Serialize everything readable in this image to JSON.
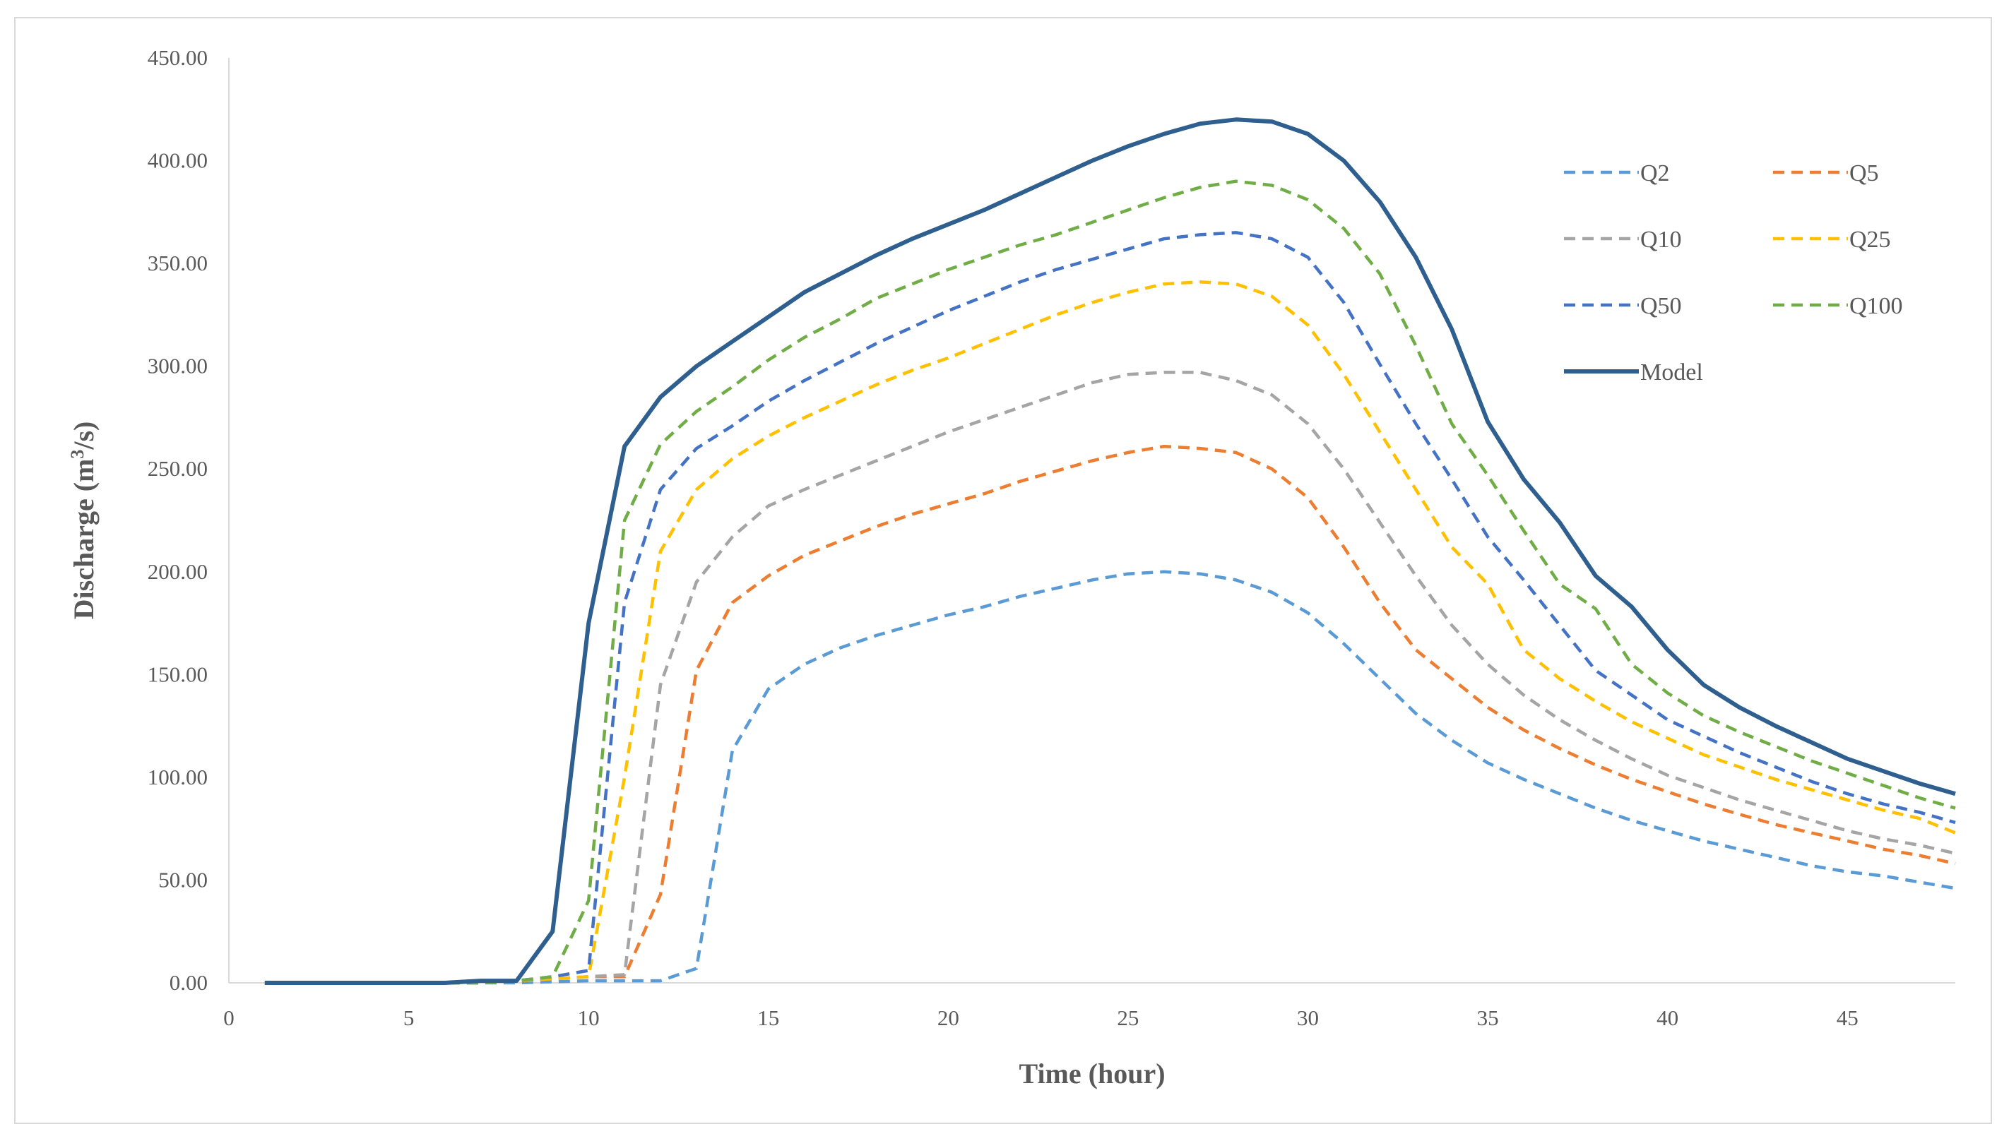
{
  "chart_data": {
    "type": "line",
    "title": "",
    "xlabel": "Time (hour)",
    "ylabel_prefix": "Discharge (m",
    "ylabel_sup": "3",
    "ylabel_suffix": "/s)",
    "xlim": [
      0,
      48
    ],
    "ylim": [
      0,
      450
    ],
    "xticks": [
      0,
      5,
      10,
      15,
      20,
      25,
      30,
      35,
      40,
      45
    ],
    "yticks": [
      0,
      50,
      100,
      150,
      200,
      250,
      300,
      350,
      400,
      450
    ],
    "ytick_labels": [
      "0.00",
      "50.00",
      "100.00",
      "150.00",
      "200.00",
      "250.00",
      "300.00",
      "350.00",
      "400.00",
      "450.00"
    ],
    "grid": false,
    "legend_position": "top-right",
    "x": [
      1,
      2,
      3,
      4,
      5,
      6,
      7,
      8,
      9,
      10,
      11,
      12,
      13,
      14,
      15,
      16,
      17,
      18,
      19,
      20,
      21,
      22,
      23,
      24,
      25,
      26,
      27,
      28,
      29,
      30,
      31,
      32,
      33,
      34,
      35,
      36,
      37,
      38,
      39,
      40,
      41,
      42,
      43,
      44,
      45,
      46,
      47,
      48
    ],
    "series": [
      {
        "name": "Q2",
        "color": "#5b9bd5",
        "dashed": true,
        "values": [
          0,
          0,
          0,
          0,
          0,
          0,
          0,
          0,
          0.5,
          1,
          1,
          1,
          7,
          113,
          143,
          155,
          163,
          169,
          174,
          179,
          183,
          188,
          192,
          196,
          199,
          200,
          199,
          196,
          190,
          180,
          165,
          148,
          131,
          118,
          107,
          99,
          92,
          85,
          79,
          74,
          69,
          65,
          61,
          57,
          54,
          52,
          49,
          46
        ]
      },
      {
        "name": "Q5",
        "color": "#ed7d31",
        "dashed": true,
        "values": [
          0,
          0,
          0,
          0,
          0,
          0,
          0,
          1,
          2,
          3,
          3,
          43,
          152,
          185,
          198,
          208,
          215,
          222,
          228,
          233,
          238,
          244,
          249,
          254,
          258,
          261,
          260,
          258,
          250,
          236,
          212,
          185,
          162,
          148,
          134,
          123,
          114,
          106,
          99,
          93,
          87,
          82,
          77,
          73,
          69,
          65,
          62,
          58
        ]
      },
      {
        "name": "Q10",
        "color": "#a5a5a5",
        "dashed": true,
        "values": [
          0,
          0,
          0,
          0,
          0,
          0,
          0,
          1,
          2,
          3,
          4,
          145,
          195,
          217,
          232,
          240,
          247,
          254,
          261,
          268,
          274,
          280,
          286,
          292,
          296,
          297,
          297,
          293,
          286,
          272,
          250,
          224,
          198,
          174,
          155,
          140,
          128,
          118,
          109,
          101,
          95,
          89,
          84,
          79,
          74,
          70,
          67,
          63
        ]
      },
      {
        "name": "Q25",
        "color": "#ffc000",
        "dashed": true,
        "values": [
          0,
          0,
          0,
          0,
          0,
          0,
          0,
          1,
          2,
          3,
          100,
          210,
          240,
          255,
          266,
          275,
          283,
          291,
          298,
          304,
          311,
          318,
          325,
          331,
          336,
          340,
          341,
          340,
          334,
          320,
          296,
          268,
          240,
          212,
          194,
          162,
          148,
          137,
          127,
          119,
          111,
          105,
          99,
          94,
          89,
          84,
          80,
          73
        ]
      },
      {
        "name": "Q50",
        "color": "#4472c4",
        "dashed": true,
        "values": [
          0,
          0,
          0,
          0,
          0,
          0,
          0,
          1,
          3,
          6,
          185,
          240,
          260,
          271,
          283,
          293,
          302,
          311,
          319,
          327,
          334,
          341,
          347,
          352,
          357,
          362,
          364,
          365,
          362,
          353,
          331,
          301,
          272,
          245,
          217,
          196,
          174,
          152,
          140,
          128,
          120,
          112,
          105,
          98,
          92,
          87,
          83,
          78
        ]
      },
      {
        "name": "Q100",
        "color": "#70ad47",
        "dashed": true,
        "values": [
          0,
          0,
          0,
          0,
          0,
          0,
          0,
          1,
          3,
          40,
          225,
          262,
          278,
          290,
          303,
          314,
          323,
          333,
          340,
          347,
          353,
          359,
          364,
          370,
          376,
          382,
          387,
          390,
          388,
          381,
          367,
          345,
          310,
          272,
          247,
          220,
          194,
          182,
          155,
          141,
          130,
          122,
          115,
          108,
          102,
          96,
          90,
          85
        ]
      },
      {
        "name": "Model",
        "color": "#2e5f8f",
        "dashed": false,
        "values": [
          0,
          0,
          0,
          0,
          0,
          0,
          1,
          1,
          25,
          175,
          261,
          285,
          300,
          312,
          324,
          336,
          345,
          354,
          362,
          369,
          376,
          384,
          392,
          400,
          407,
          413,
          418,
          420,
          419,
          413,
          400,
          380,
          353,
          318,
          273,
          245,
          224,
          198,
          183,
          162,
          145,
          134,
          125,
          117,
          109,
          103,
          97,
          92
        ]
      }
    ]
  }
}
